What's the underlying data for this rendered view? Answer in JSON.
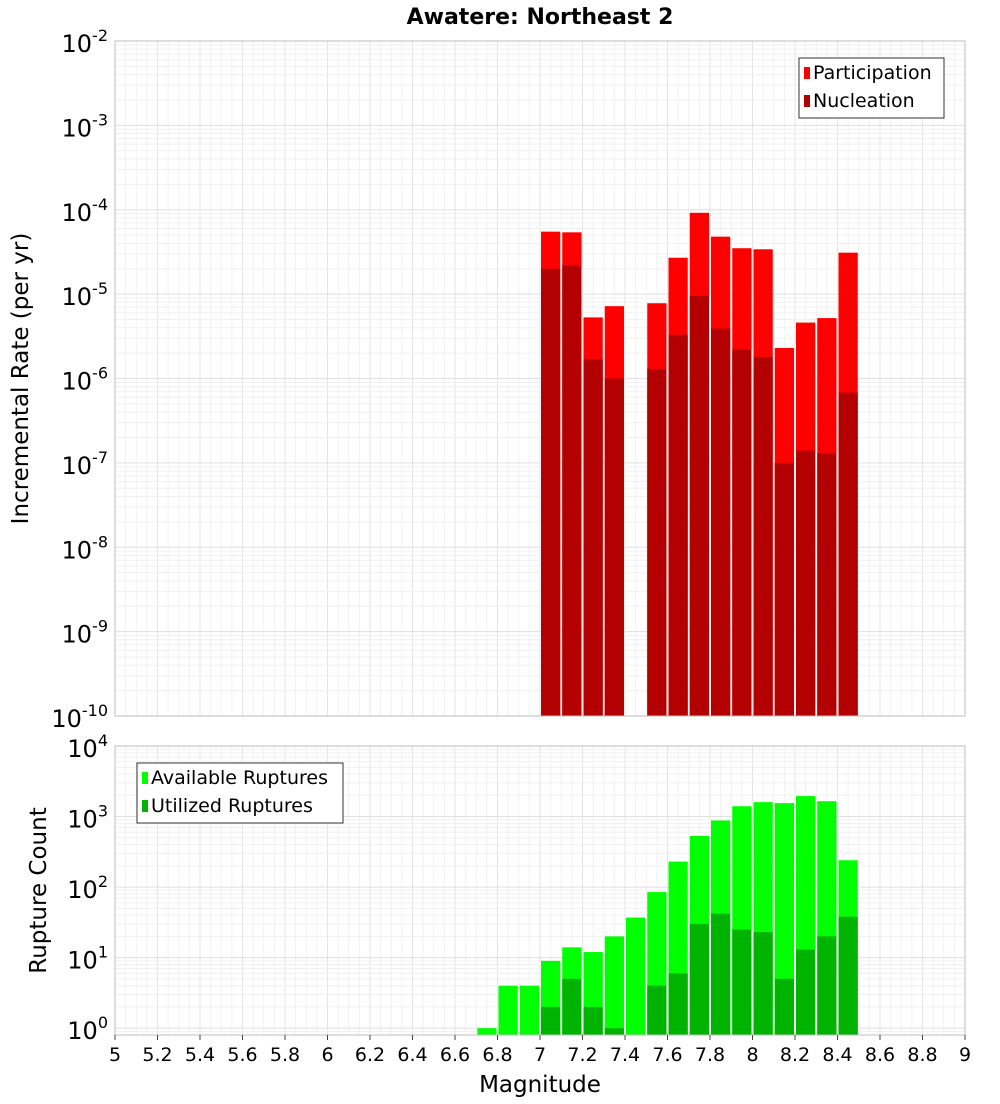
{
  "chart_data": {
    "title": "Awatere: Northeast 2",
    "xlabel": "Magnitude",
    "xlim": [
      5,
      9
    ],
    "x_ticks": [
      "5",
      "5.2",
      "5.4",
      "5.6",
      "5.8",
      "6",
      "6.2",
      "6.4",
      "6.6",
      "6.8",
      "7",
      "7.2",
      "7.4",
      "7.6",
      "7.8",
      "8",
      "8.2",
      "8.4",
      "8.6",
      "8.8",
      "9"
    ],
    "panels": [
      {
        "type": "bar",
        "scale": "log",
        "ylabel": "Incremental Rate (per yr)",
        "ylim": [
          1e-10,
          0.01
        ],
        "y_tick_exponents": [
          "-2",
          "-3",
          "-4",
          "-5",
          "-6",
          "-7",
          "-8",
          "-9",
          "-10"
        ],
        "legend_position": "top-right",
        "series": [
          {
            "name": "Participation",
            "color": "#ff0000",
            "x": [
              7.0,
              7.1,
              7.2,
              7.3,
              7.5,
              7.6,
              7.7,
              7.8,
              7.9,
              8.0,
              8.1,
              8.2,
              8.3,
              8.4
            ],
            "values": [
              5.5e-05,
              5.4e-05,
              5.3e-06,
              7.2e-06,
              7.8e-06,
              2.7e-05,
              9.2e-05,
              4.8e-05,
              3.5e-05,
              3.4e-05,
              2.3e-06,
              4.6e-06,
              5.2e-06,
              3.1e-05
            ]
          },
          {
            "name": "Nucleation",
            "color": "#b30000",
            "x": [
              7.0,
              7.1,
              7.2,
              7.3,
              7.5,
              7.6,
              7.7,
              7.8,
              7.9,
              8.0,
              8.1,
              8.2,
              8.3,
              8.4
            ],
            "values": [
              2e-05,
              2.2e-05,
              1.7e-06,
              1e-06,
              1.3e-06,
              3.3e-06,
              9.5e-06,
              3.9e-06,
              2.2e-06,
              1.8e-06,
              1e-07,
              1.4e-07,
              1.3e-07,
              6.8e-07
            ]
          }
        ]
      },
      {
        "type": "bar",
        "scale": "log",
        "ylabel": "Rupture Count",
        "ylim": [
          0.8,
          10000
        ],
        "y_tick_exponents": [
          "0",
          "1",
          "2",
          "3",
          "4"
        ],
        "legend_position": "top-left",
        "series": [
          {
            "name": "Available Ruptures",
            "color": "#00ff00",
            "x": [
              6.7,
              6.8,
              6.9,
              7.0,
              7.1,
              7.2,
              7.3,
              7.4,
              7.5,
              7.6,
              7.7,
              7.8,
              7.9,
              8.0,
              8.1,
              8.2,
              8.3,
              8.4
            ],
            "values": [
              1,
              4,
              4,
              9,
              14,
              12,
              20,
              37,
              85,
              230,
              530,
              880,
              1400,
              1600,
              1550,
              1950,
              1650,
              240
            ]
          },
          {
            "name": "Utilized Ruptures",
            "color": "#00b300",
            "x": [
              7.0,
              7.1,
              7.2,
              7.3,
              7.5,
              7.6,
              7.7,
              7.8,
              7.9,
              8.0,
              8.1,
              8.2,
              8.3,
              8.4
            ],
            "values": [
              2,
              5,
              2,
              1,
              4,
              6,
              30,
              42,
              25,
              23,
              5,
              13,
              20,
              38
            ]
          }
        ]
      }
    ]
  }
}
